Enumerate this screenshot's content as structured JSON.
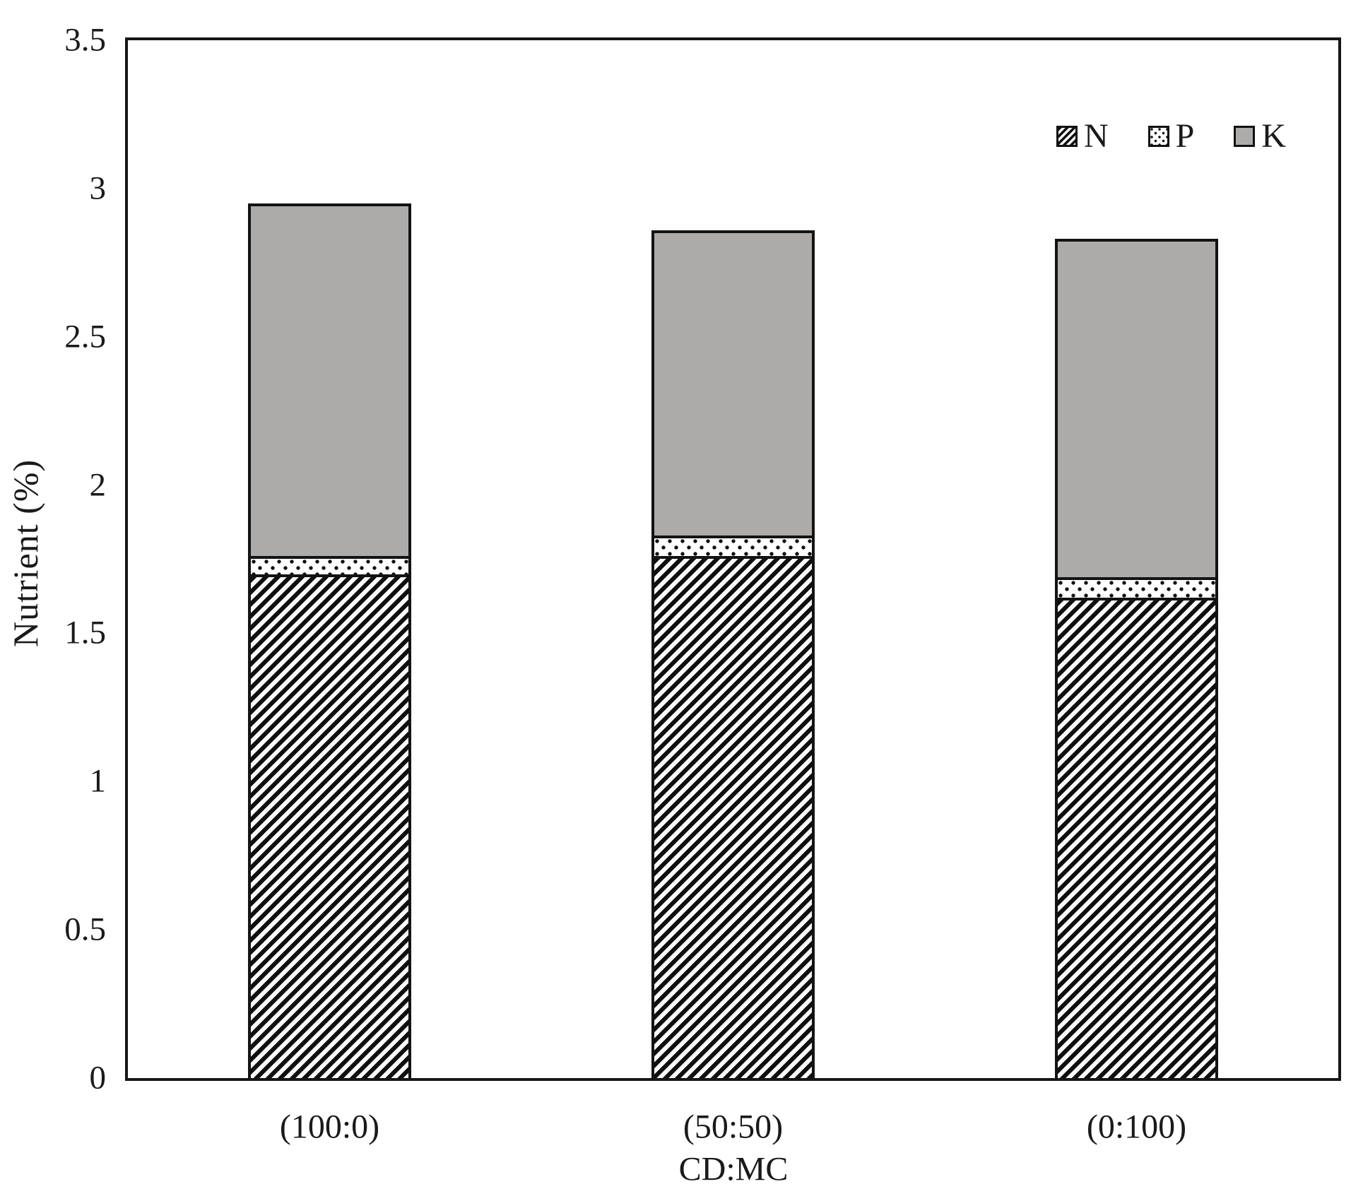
{
  "figure": {
    "y_axis_title": "Nutrient (%)",
    "x_axis_title": "CD:MC"
  },
  "chart_data": {
    "type": "bar",
    "stacked": true,
    "title": "",
    "xlabel": "CD:MC",
    "ylabel": "Nutrient (%)",
    "categories": [
      "(100:0)",
      "(50:50)",
      "(0:100)"
    ],
    "series": [
      {
        "name": "N",
        "pattern": "diagonal-hatch",
        "values": [
          1.7,
          1.76,
          1.62
        ]
      },
      {
        "name": "P",
        "pattern": "dotted",
        "values": [
          0.06,
          0.07,
          0.07
        ]
      },
      {
        "name": "K",
        "pattern": "solid",
        "color": "#acaba9",
        "values": [
          1.19,
          1.03,
          1.14
        ]
      }
    ],
    "stack_totals": [
      2.95,
      2.86,
      2.83
    ],
    "ylim": [
      0,
      3.5
    ],
    "ytick_interval": 0.5,
    "ytick_labels": [
      "0",
      "0.5",
      "1",
      "1.5",
      "2",
      "2.5",
      "3",
      "3.5"
    ],
    "grid": false,
    "legend_position": "top-right-inside",
    "legend_entries": [
      "N",
      "P",
      "K"
    ],
    "colors": {
      "axis": "#161616",
      "hatch_dark": "#0f0f0f",
      "k_fill": "#acaba9",
      "background": "#ffffff"
    }
  }
}
